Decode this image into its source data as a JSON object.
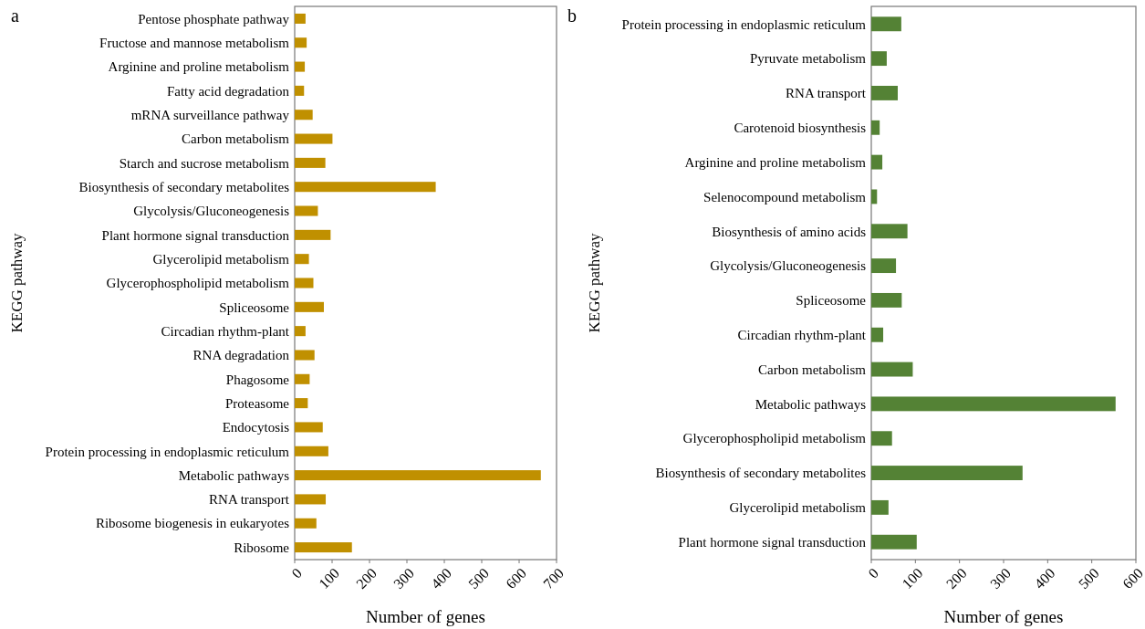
{
  "chart_data": [
    {
      "type": "bar",
      "orientation": "horizontal",
      "title": "a",
      "xlabel": "Number of genes",
      "ylabel": "KEGG pathway",
      "categories": [
        "Pentose phosphate pathway",
        "Fructose and mannose metabolism",
        "Arginine and proline metabolism",
        "Fatty acid degradation",
        "mRNA surveillance pathway",
        "Carbon metabolism",
        "Starch and sucrose metabolism",
        "Biosynthesis of secondary metabolites",
        "Glycolysis/Gluconeogenesis",
        "Plant hormone signal transduction",
        "Glycerolipid metabolism",
        "Glycerophospholipid metabolism",
        "Spliceosome",
        "Circadian rhythm-plant",
        "RNA degradation",
        "Phagosome",
        "Proteasome",
        "Endocytosis",
        "Protein processing in endoplasmic reticulum",
        "Metabolic pathways",
        "RNA transport",
        "Ribosome biogenesis in eukaryotes",
        "Ribosome"
      ],
      "values": [
        29,
        32,
        27,
        25,
        48,
        101,
        82,
        377,
        62,
        96,
        38,
        50,
        78,
        29,
        53,
        40,
        35,
        75,
        90,
        658,
        83,
        58,
        153
      ],
      "color": "#c09000",
      "xlim": [
        0,
        700
      ],
      "xticks": [
        0,
        100,
        200,
        300,
        400,
        500,
        600,
        700
      ]
    },
    {
      "type": "bar",
      "orientation": "horizontal",
      "title": "b",
      "xlabel": "Number of genes",
      "ylabel": "KEGG pathway",
      "categories": [
        "Protein processing in endoplasmic reticulum",
        "Pyruvate metabolism",
        "RNA transport",
        "Carotenoid biosynthesis",
        "Arginine and proline metabolism",
        "Selenocompound metabolism",
        "Biosynthesis of amino acids",
        "Glycolysis/Gluconeogenesis",
        "Spliceosome",
        "Circadian rhythm-plant",
        "Carbon metabolism",
        "Metabolic pathways",
        "Glycerophospholipid metabolism",
        "Biosynthesis of secondary metabolites",
        "Glycerolipid metabolism",
        "Plant hormone signal transduction"
      ],
      "values": [
        68,
        35,
        60,
        19,
        25,
        13,
        82,
        56,
        69,
        27,
        94,
        554,
        47,
        343,
        39,
        103
      ],
      "color": "#548235",
      "xlim": [
        0,
        600
      ],
      "xticks": [
        0,
        100,
        200,
        300,
        400,
        500,
        600
      ]
    }
  ]
}
